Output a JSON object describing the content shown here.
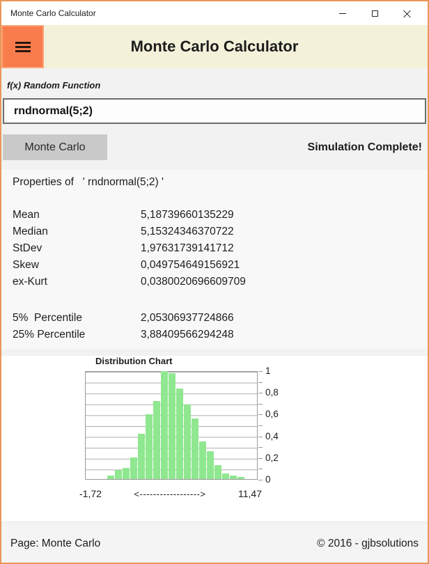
{
  "window": {
    "title": "Monte Carlo Calculator"
  },
  "header": {
    "title": "Monte Carlo Calculator"
  },
  "function_section": {
    "label": "f(x) Random Function",
    "input_value": "rndnormal(5;2)"
  },
  "simulation": {
    "run_button_label": "Monte Carlo",
    "status": "Simulation Complete!"
  },
  "properties": {
    "heading": "Properties of   ' rndnormal(5;2) '",
    "stats": [
      {
        "label": "Mean",
        "value": "5,18739660135229"
      },
      {
        "label": "Median",
        "value": "5,15324346370722"
      },
      {
        "label": "StDev",
        "value": "1,97631739141712"
      },
      {
        "label": "Skew",
        "value": "0,049754649156921"
      },
      {
        "label": "ex-Kurt",
        "value": "0,0380020696609709"
      }
    ],
    "percentiles": [
      {
        "label": "5%  Percentile",
        "value": "2,05306937724866"
      },
      {
        "label": "25% Percentile",
        "value": "3,88409566294248"
      }
    ]
  },
  "chart_data": {
    "type": "bar",
    "title": "Distribution Chart",
    "values": [
      0.033,
      0.085,
      0.105,
      0.2,
      0.42,
      0.6,
      0.72,
      1.0,
      0.98,
      0.84,
      0.69,
      0.56,
      0.35,
      0.26,
      0.13,
      0.05,
      0.03,
      0.02
    ],
    "ylim": [
      0,
      1
    ],
    "gridline_step": 0.1,
    "bar_color": "#8fe78f",
    "legend": "none",
    "y_ticks": [
      {
        "v": 1.0,
        "label": "1"
      },
      {
        "v": 0.9,
        "label": ""
      },
      {
        "v": 0.8,
        "label": "0,8"
      },
      {
        "v": 0.7,
        "label": ""
      },
      {
        "v": 0.6,
        "label": "0,6"
      },
      {
        "v": 0.5,
        "label": ""
      },
      {
        "v": 0.4,
        "label": "0,4"
      },
      {
        "v": 0.3,
        "label": ""
      },
      {
        "v": 0.2,
        "label": "0,2"
      },
      {
        "v": 0.1,
        "label": ""
      },
      {
        "v": 0.0,
        "label": "0"
      }
    ],
    "x_axis": {
      "min_label": "-1,72",
      "arrow": "<------------------>",
      "max_label": "11,47"
    }
  },
  "footer": {
    "page": "Page: Monte Carlo",
    "copyright": "© 2016 - gjbsolutions"
  },
  "colors": {
    "window_border": "#e9965a",
    "menu_button": "#f97c4d",
    "header_background": "#f4f1da",
    "bar_green": "#8fe78f",
    "run_button_gray": "#c9c9c9"
  }
}
